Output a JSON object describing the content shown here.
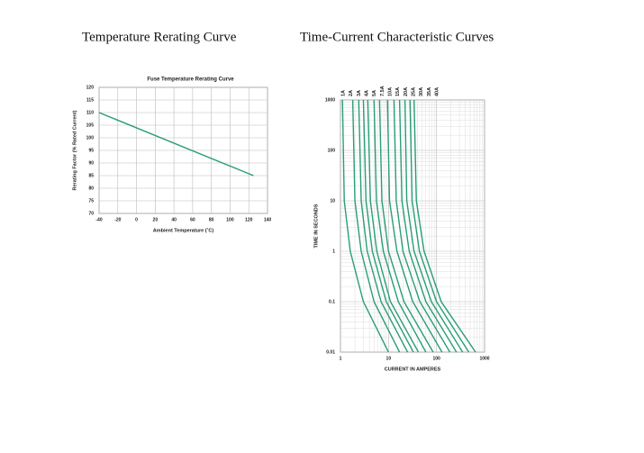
{
  "headings": [
    "Temperature Rerating Curve",
    "Time-Current Characteristic Curves"
  ],
  "chart_data": [
    {
      "type": "line",
      "title": "Fuse Temperature Rerating Curve",
      "x_label": "Ambient Temperature (˚C)",
      "y_label": "Rerating Factor (% Rated Current)",
      "x": [
        -40,
        125
      ],
      "values": [
        110,
        85
      ],
      "color": "#2a9d78",
      "xlim": [
        -40,
        140
      ],
      "xticks": [
        -40,
        -20,
        0,
        20,
        40,
        60,
        80,
        100,
        120,
        140
      ],
      "ylim": [
        70,
        120
      ],
      "yticks": [
        70,
        75,
        80,
        85,
        90,
        95,
        100,
        105,
        110,
        115,
        120
      ],
      "grid": true
    },
    {
      "type": "line",
      "x_label": "CURRENT IN AMPERES",
      "y_label": "TIME IN SECONDS",
      "xlog": true,
      "ylog": true,
      "grid": true,
      "xlim": [
        1,
        1000
      ],
      "xticks": [
        1,
        10,
        100,
        1000
      ],
      "ylim": [
        0.01,
        1000
      ],
      "yticks": [
        0.01,
        0.1,
        1,
        10,
        100,
        1000
      ],
      "series": [
        {
          "name": "1A",
          "color": "#2a9d78",
          "x": [
            1.1,
            1.2,
            1.6,
            3,
            10
          ],
          "values": [
            1000,
            10,
            1,
            0.1,
            0.01
          ]
        },
        {
          "name": "2A",
          "color": "#2a9d78",
          "x": [
            1.8,
            2,
            2.7,
            5,
            17
          ],
          "values": [
            1000,
            10,
            1,
            0.1,
            0.01
          ]
        },
        {
          "name": "3A",
          "color": "#2a9d78",
          "x": [
            2.4,
            2.7,
            3.6,
            7,
            25
          ],
          "values": [
            1000,
            10,
            1,
            0.1,
            0.01
          ]
        },
        {
          "name": "4A",
          "color": "#2a9d78",
          "x": [
            3,
            3.4,
            4.6,
            9,
            33
          ],
          "values": [
            1000,
            10,
            1,
            0.1,
            0.01
          ]
        },
        {
          "name": "5A",
          "color": "#2a9d78",
          "x": [
            3.7,
            4.2,
            5.7,
            11,
            42
          ],
          "values": [
            1000,
            10,
            1,
            0.1,
            0.01
          ]
        },
        {
          "name": "7.5A",
          "color": "#2a9d78",
          "x": [
            5,
            5.6,
            7.8,
            16,
            60
          ],
          "values": [
            1000,
            10,
            1,
            0.1,
            0.01
          ]
        },
        {
          "name": "10A",
          "color": "#2a9d78",
          "x": [
            6.5,
            7.3,
            10,
            21,
            85
          ],
          "values": [
            1000,
            10,
            1,
            0.1,
            0.01
          ]
        },
        {
          "name": "15A",
          "color": "#2a9d78",
          "x": [
            9.5,
            10.5,
            15,
            32,
            130
          ],
          "values": [
            1000,
            10,
            1,
            0.1,
            0.01
          ]
        },
        {
          "name": "20A",
          "color": "#2a9d78",
          "x": [
            13,
            14.5,
            20,
            45,
            190
          ],
          "values": [
            1000,
            10,
            1,
            0.1,
            0.01
          ]
        },
        {
          "name": "25A",
          "color": "#2a9d78",
          "x": [
            17,
            19,
            27,
            60,
            260
          ],
          "values": [
            1000,
            10,
            1,
            0.1,
            0.01
          ]
        },
        {
          "name": "30A",
          "color": "#2a9d78",
          "x": [
            22,
            24,
            34,
            78,
            350
          ],
          "values": [
            1000,
            10,
            1,
            0.1,
            0.01
          ]
        },
        {
          "name": "35A",
          "color": "#2a9d78",
          "x": [
            28,
            31,
            44,
            100,
            470
          ],
          "values": [
            1000,
            10,
            1,
            0.1,
            0.01
          ]
        },
        {
          "name": "40A",
          "color": "#2a9d78",
          "x": [
            34,
            38,
            55,
            125,
            650
          ],
          "values": [
            1000,
            10,
            1,
            0.1,
            0.01
          ]
        }
      ]
    }
  ]
}
